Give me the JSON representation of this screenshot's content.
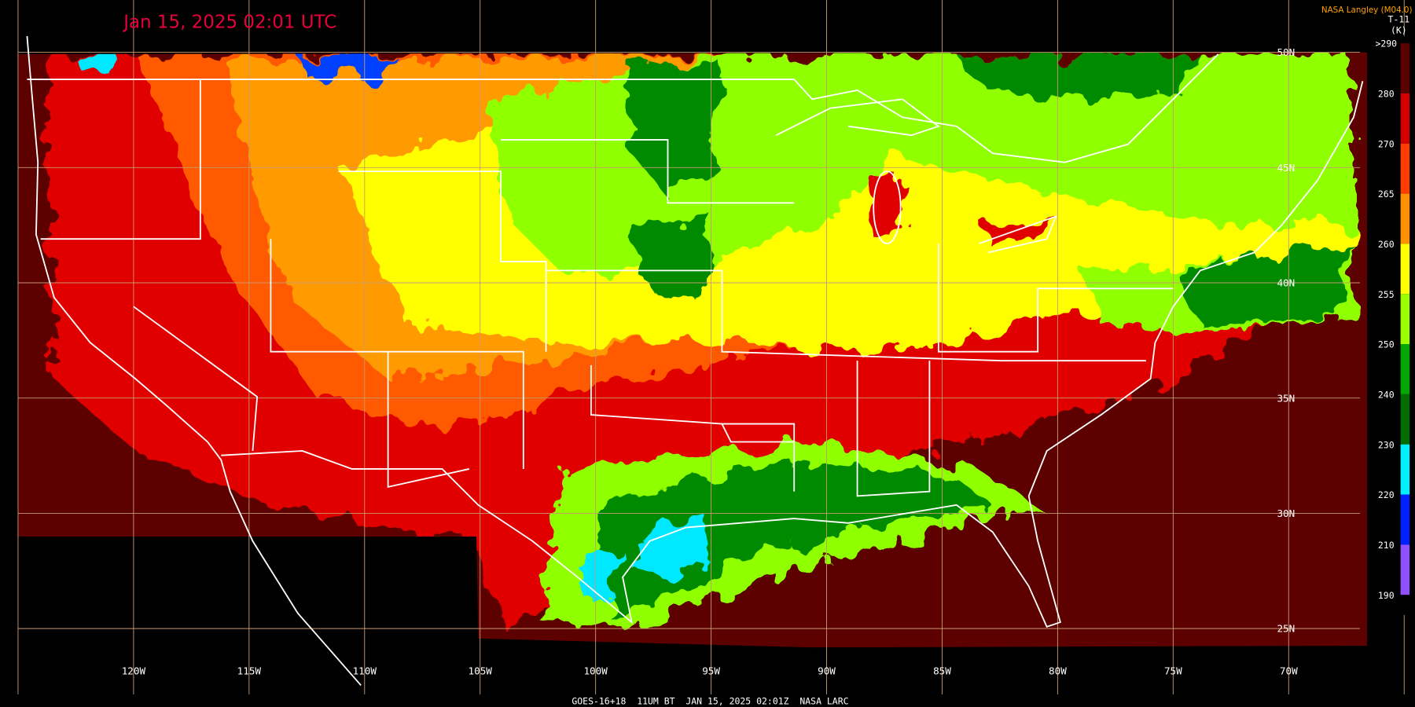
{
  "header": {
    "title": "Jan 15, 2025 02:01 UTC",
    "credit": "NASA Langley (M04.0)",
    "channel": "T-11",
    "unit": "(K)"
  },
  "colorbar": {
    "labels": [
      ">290",
      "280",
      "270",
      "265",
      "260",
      "255",
      "250",
      "240",
      "230",
      "220",
      "210",
      "190"
    ],
    "colors": [
      "#5c0000",
      "#d40000",
      "#ff3c00",
      "#ff9000",
      "#ffff00",
      "#9cff00",
      "#00a800",
      "#006e00",
      "#00f0ff",
      "#0020ff",
      "#9050ff"
    ]
  },
  "latitudes": [
    "50N",
    "45N",
    "40N",
    "35N",
    "30N",
    "25N"
  ],
  "longitudes": [
    "120W",
    "115W",
    "110W",
    "105W",
    "100W",
    "95W",
    "90W",
    "85W",
    "80W",
    "75W",
    "70W"
  ],
  "footer": "GOES-16+18  11UM BT  JAN 15, 2025 02:01Z  NASA LARC"
}
